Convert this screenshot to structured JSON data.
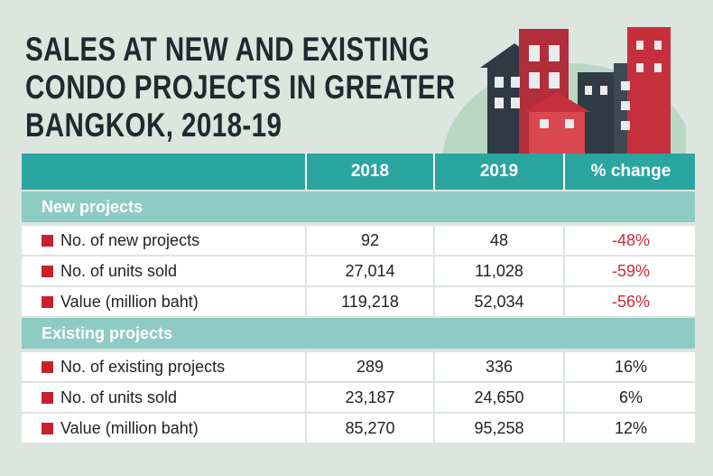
{
  "title_lines": [
    "SALES AT NEW AND EXISTING",
    "CONDO PROJECTS IN GREATER",
    "BANGKOK, 2018-19"
  ],
  "columns": [
    "2018",
    "2019",
    "% change"
  ],
  "sections": [
    {
      "title": "New projects",
      "rows": [
        [
          "No. of new projects",
          "92",
          "48",
          "-48%"
        ],
        [
          "No. of units sold",
          "27,014",
          "11,028",
          "-59%"
        ],
        [
          "Value (million baht)",
          "119,218",
          "52,034",
          "-56%"
        ]
      ]
    },
    {
      "title": "Existing projects",
      "rows": [
        [
          "No. of existing projects",
          "289",
          "336",
          "16%"
        ],
        [
          "No. of units sold",
          "23,187",
          "24,650",
          "6%"
        ],
        [
          "Value (million baht)",
          "85,270",
          "95,258",
          "12%"
        ]
      ]
    }
  ]
}
